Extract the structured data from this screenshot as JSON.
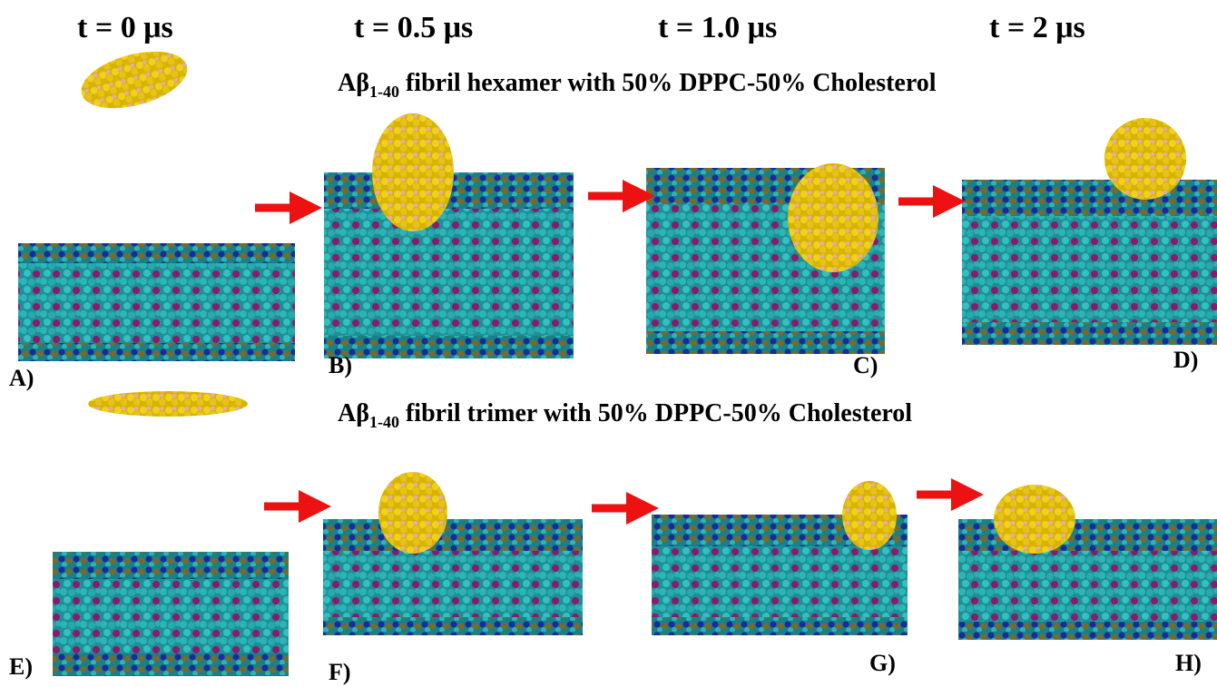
{
  "time_labels": [
    "t = 0 μs",
    "t = 0.5 μs",
    "t = 1.0 μs",
    "t = 2 μs"
  ],
  "rows": [
    {
      "title": {
        "main": "Aβ",
        "sub": "1-40",
        "rest": "fibril hexamer with 50% DPPC-50% Cholesterol"
      },
      "panels": [
        "A)",
        "B)",
        "C)",
        "D)"
      ]
    },
    {
      "title": {
        "main": "Aβ",
        "sub": "1-40",
        "rest": "fibril trimer with 50% DPPC-50% Cholesterol"
      },
      "panels": [
        "E)",
        "F)",
        "G)",
        "H)"
      ]
    }
  ]
}
